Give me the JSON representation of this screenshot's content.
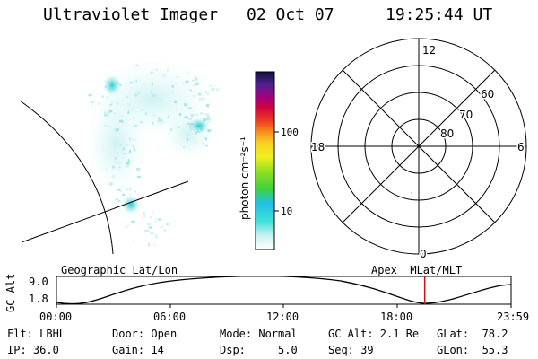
{
  "header": {
    "instrument": "Ultraviolet Imager",
    "date": "02 Oct 07",
    "time": "19:25:44 UT"
  },
  "colorbar": {
    "unit_label": "photon cm⁻²s⁻¹",
    "ticks": [
      "100",
      "10"
    ]
  },
  "polar_plot": {
    "mlt_labels": {
      "top": "12",
      "left": "18",
      "right": "6",
      "bottom": "0"
    },
    "lat_labels": [
      "60",
      "70",
      "80"
    ]
  },
  "timeline": {
    "title_left": "Geographic Lat/Lon",
    "title_right": "Apex  MLat/MLT",
    "ylabel": "GC Alt",
    "ymax": "9.0",
    "ymin": "1.8",
    "xticks": [
      "00:00",
      "06:00",
      "12:00",
      "18:00",
      "23:59"
    ],
    "marker_color": "#d01010",
    "current_time_fraction": 0.81
  },
  "status": {
    "filter": "Flt: LBHL",
    "ip": "IP: 36.0",
    "door": "Door: Open",
    "gain": "Gain: 14",
    "mode": "Mode: Normal",
    "dsp": "Dsp:     5.0",
    "gc_alt": "GC Alt: 2.1 Re",
    "seq": "Seq: 39",
    "glat": "GLat:  78.2",
    "glon": "GLon:  55.3"
  }
}
